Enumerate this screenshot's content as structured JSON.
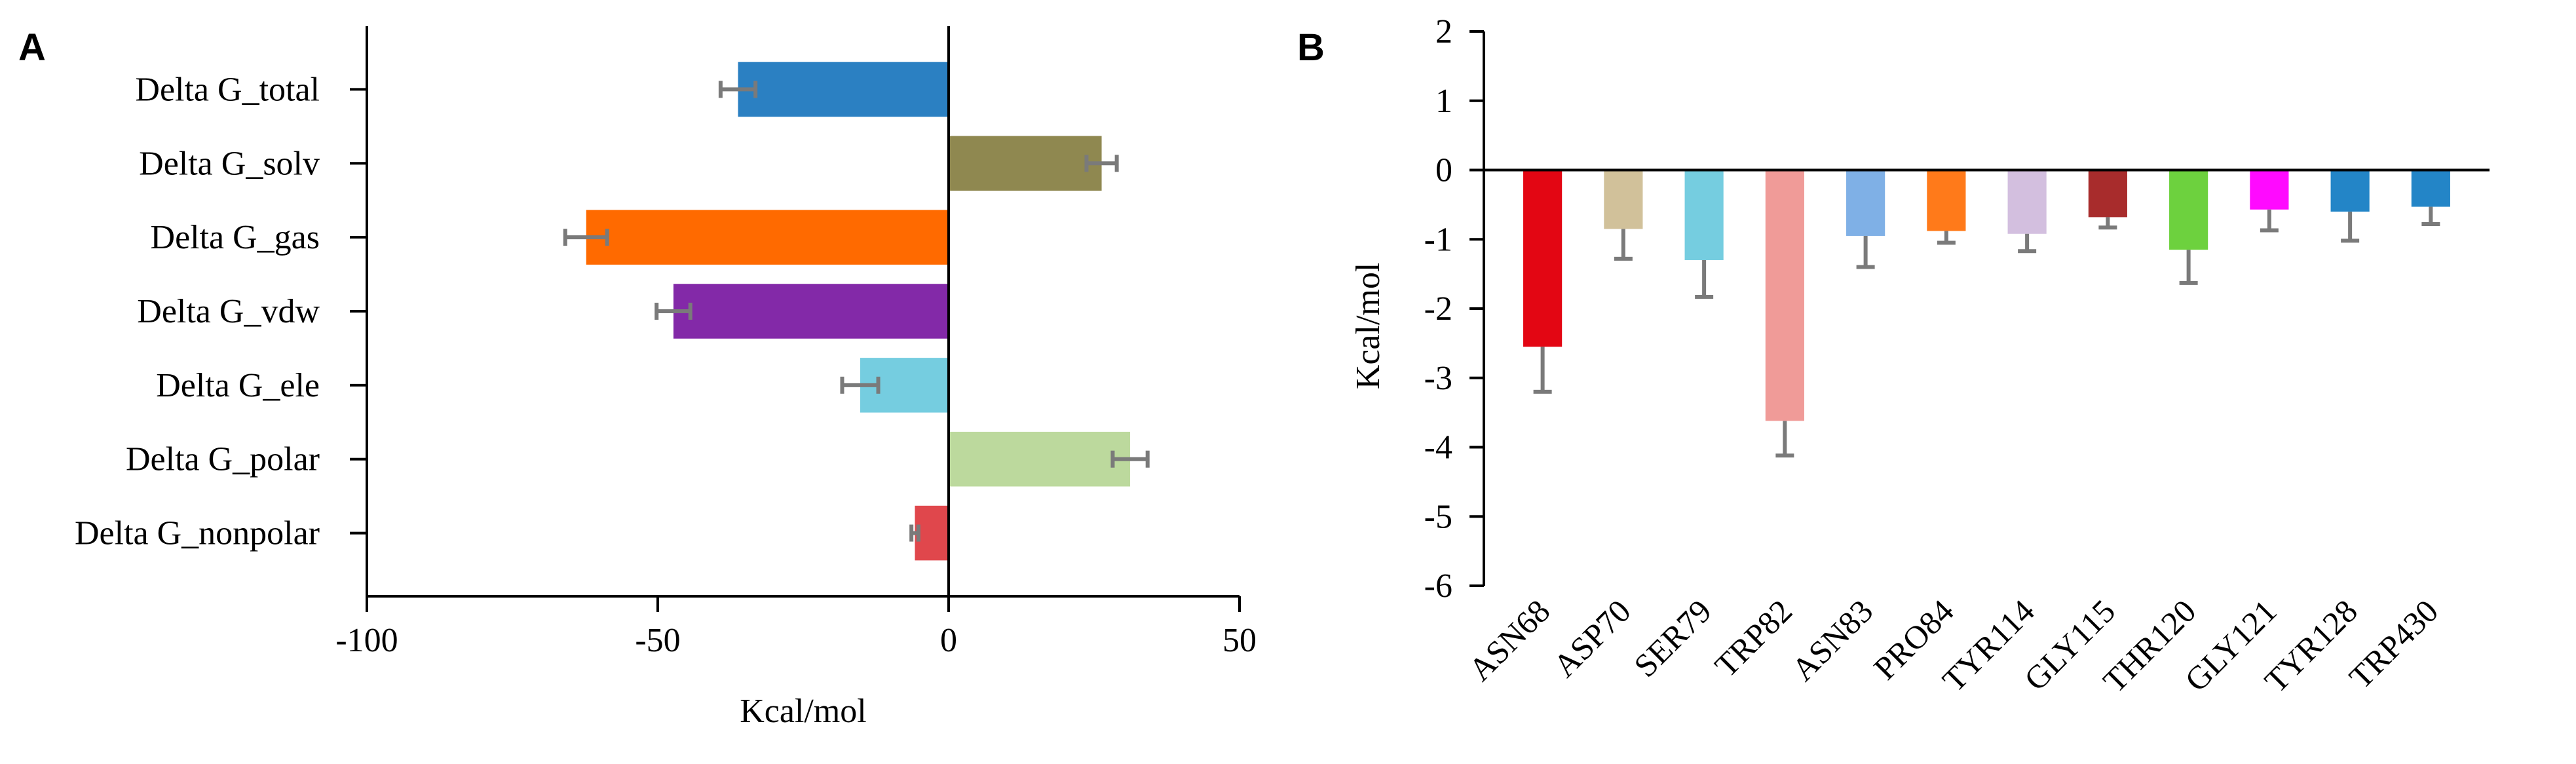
{
  "chart_data": [
    {
      "panel": "A",
      "type": "bar",
      "orientation": "horizontal",
      "title": "",
      "xlabel": "Kcal/mol",
      "ylabel": "",
      "xlim": [
        -100,
        50
      ],
      "xticks": [
        -100,
        -50,
        0,
        50
      ],
      "categories": [
        "Delta G_total",
        "Delta G_solv",
        "Delta G_gas",
        "Delta G_vdw",
        "Delta G_ele",
        "Delta G_polar",
        "Delta G_nonpolar"
      ],
      "values": [
        -36.2,
        26.3,
        -62.3,
        -47.3,
        -15.2,
        31.2,
        -5.8
      ],
      "errors": [
        3.0,
        2.6,
        3.6,
        2.9,
        3.1,
        3.0,
        0.6
      ],
      "colors": [
        "#2b80c2",
        "#8f8850",
        "#ff6a00",
        "#8329a8",
        "#75cde0",
        "#bcd99d",
        "#e0474c"
      ],
      "error_color": "#7a7a7a",
      "grid": false
    },
    {
      "panel": "B",
      "type": "bar",
      "orientation": "vertical",
      "title": "",
      "xlabel": "",
      "ylabel": "Kcal/mol",
      "ylim": [
        -6,
        2
      ],
      "yticks": [
        -6,
        -5,
        -4,
        -3,
        -2,
        -1,
        0,
        1,
        2
      ],
      "categories": [
        "ASN68",
        "ASP70",
        "SER79",
        "TRP82",
        "ASN83",
        "PRO84",
        "TYR114",
        "GLY115",
        "THR120",
        "GLY121",
        "TYR128",
        "TRP430"
      ],
      "values": [
        -2.55,
        -0.85,
        -1.3,
        -3.62,
        -0.95,
        -0.88,
        -0.92,
        -0.68,
        -1.15,
        -0.57,
        -0.6,
        -0.53
      ],
      "errors": [
        0.65,
        0.43,
        0.53,
        0.5,
        0.45,
        0.17,
        0.25,
        0.15,
        0.48,
        0.3,
        0.42,
        0.25
      ],
      "colors": [
        "#e30613",
        "#d1c19a",
        "#75cde0",
        "#f09b98",
        "#7fb0e6",
        "#ff7a1a",
        "#d3bfdf",
        "#a82c2c",
        "#6dd13e",
        "#ff0aff",
        "#2385c7",
        "#2385c7"
      ],
      "error_color": "#7a7a7a",
      "grid": false
    }
  ],
  "panel_labels": {
    "a": "A",
    "b": "B"
  }
}
